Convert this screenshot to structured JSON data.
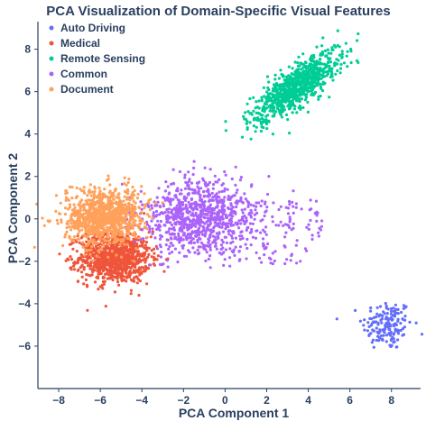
{
  "chart_data": {
    "type": "scatter",
    "title": "PCA Visualization of Domain-Specific Visual Features",
    "xlabel": "PCA Component 1",
    "ylabel": "PCA Component 2",
    "xlim": [
      -9,
      9.4
    ],
    "ylim": [
      -8,
      9.3
    ],
    "xticks": [
      -8,
      -6,
      -4,
      -2,
      0,
      2,
      4,
      6,
      8
    ],
    "yticks": [
      -6,
      -4,
      -2,
      0,
      2,
      4,
      6,
      8
    ],
    "grid": false,
    "legend_position": "top-left",
    "series": [
      {
        "name": "Auto Driving",
        "color": "#636efa",
        "center": [
          7.8,
          -5.0
        ],
        "spread": [
          0.6,
          0.6
        ],
        "count": 160
      },
      {
        "name": "Medical",
        "color": "#ef553b",
        "center": [
          -5.3,
          -1.8
        ],
        "spread": [
          0.85,
          0.6
        ],
        "count": 1000
      },
      {
        "name": "Remote Sensing",
        "color": "#00cc96",
        "center": [
          3.5,
          6.3
        ],
        "spread": [
          1.2,
          0.95
        ],
        "count": 900
      },
      {
        "name": "Common",
        "color": "#ab63fa",
        "center": [
          -1.3,
          0.1
        ],
        "spread": [
          1.35,
          0.85
        ],
        "count": 1000
      },
      {
        "name": "Document",
        "color": "#ffa15a",
        "center": [
          -5.8,
          0.1
        ],
        "spread": [
          0.95,
          0.65
        ],
        "count": 1000
      }
    ]
  }
}
